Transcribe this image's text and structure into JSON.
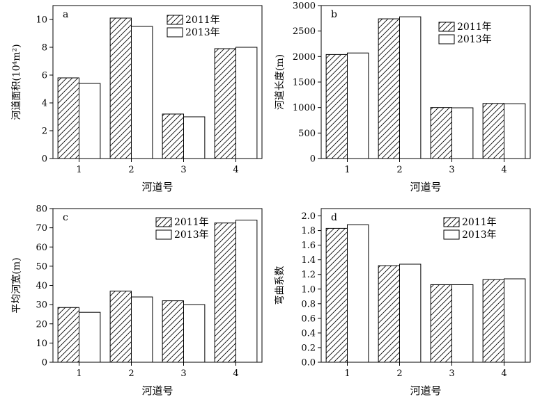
{
  "chart_data": [
    {
      "type": "bar",
      "panel_letter": "a",
      "ylabel": "河道面积(10⁴m²)",
      "xlabel": "河道号",
      "categories": [
        "1",
        "2",
        "3",
        "4"
      ],
      "ylim": [
        0,
        11
      ],
      "yticks": [
        0,
        2,
        4,
        6,
        8,
        10
      ],
      "ytick_labels": [
        "0",
        "2",
        "4",
        "6",
        "8",
        "10"
      ],
      "legend_position": "top-center",
      "series": [
        {
          "name": "2011年",
          "values": [
            5.8,
            10.1,
            3.2,
            7.9
          ],
          "pattern": "hatch"
        },
        {
          "name": "2013年",
          "values": [
            5.4,
            9.5,
            3.0,
            8.0
          ],
          "pattern": "white"
        }
      ]
    },
    {
      "type": "bar",
      "panel_letter": "b",
      "ylabel": "河道长度(m)",
      "xlabel": "河道号",
      "categories": [
        "1",
        "2",
        "3",
        "4"
      ],
      "ylim": [
        0,
        3000
      ],
      "yticks": [
        0,
        500,
        1000,
        1500,
        2000,
        2500,
        3000
      ],
      "ytick_labels": [
        "0",
        "500",
        "1000",
        "1500",
        "2000",
        "2500",
        "3000"
      ],
      "legend_position": "top-right",
      "series": [
        {
          "name": "2011年",
          "values": [
            2040,
            2740,
            1000,
            1080
          ],
          "pattern": "hatch"
        },
        {
          "name": "2013年",
          "values": [
            2070,
            2780,
            995,
            1075
          ],
          "pattern": "white"
        }
      ]
    },
    {
      "type": "bar",
      "panel_letter": "c",
      "ylabel": "平均河宽(m)",
      "xlabel": "河道号",
      "categories": [
        "1",
        "2",
        "3",
        "4"
      ],
      "ylim": [
        0,
        80
      ],
      "yticks": [
        0,
        10,
        20,
        30,
        40,
        50,
        60,
        70,
        80
      ],
      "ytick_labels": [
        "0",
        "10",
        "20",
        "30",
        "40",
        "50",
        "60",
        "70",
        "80"
      ],
      "legend_position": "top-center",
      "series": [
        {
          "name": "2011年",
          "values": [
            28.5,
            37,
            32,
            72.5
          ],
          "pattern": "hatch"
        },
        {
          "name": "2013年",
          "values": [
            26,
            34,
            30,
            74
          ],
          "pattern": "white"
        }
      ]
    },
    {
      "type": "bar",
      "panel_letter": "d",
      "ylabel": "弯曲系数",
      "xlabel": "河道号",
      "categories": [
        "1",
        "2",
        "3",
        "4"
      ],
      "ylim": [
        0,
        2.1
      ],
      "yticks": [
        0.0,
        0.2,
        0.4,
        0.6,
        0.8,
        1.0,
        1.2,
        1.4,
        1.6,
        1.8,
        2.0
      ],
      "ytick_labels": [
        "0.0",
        "0.2",
        "0.4",
        "0.6",
        "0.8",
        "1.0",
        "1.2",
        "1.4",
        "1.6",
        "1.8",
        "2.0"
      ],
      "legend_position": "top-right",
      "series": [
        {
          "name": "2011年",
          "values": [
            1.83,
            1.32,
            1.06,
            1.13
          ],
          "pattern": "hatch"
        },
        {
          "name": "2013年",
          "values": [
            1.88,
            1.34,
            1.06,
            1.14
          ],
          "pattern": "white"
        }
      ]
    }
  ]
}
